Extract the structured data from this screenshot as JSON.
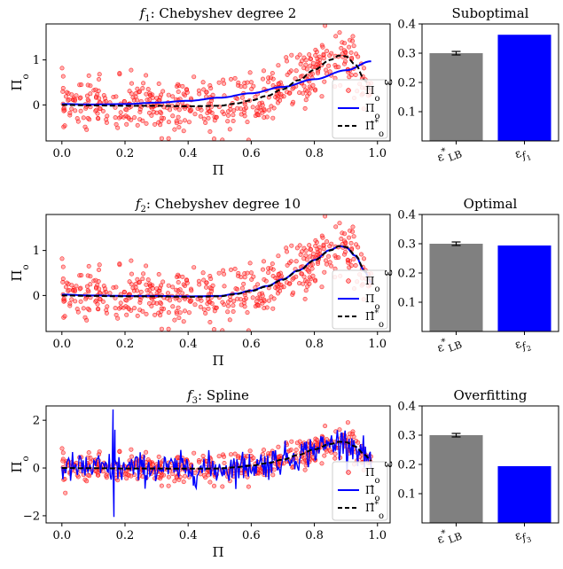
{
  "chart_data": [
    {
      "type": "scatter+line",
      "panel": "left",
      "title": "f₁: Chebyshev degree 2",
      "xlabel": "Π",
      "ylabel": "Π_o",
      "xlim": [
        -0.05,
        1.04
      ],
      "ylim": [
        -0.8,
        1.8
      ],
      "xticks": [
        0.0,
        0.2,
        0.4,
        0.6,
        0.8,
        1.0
      ],
      "xtick_labels": [
        "0.0",
        "0.2",
        "0.4",
        "0.6",
        "0.8",
        "1.0"
      ],
      "yticks": [
        0,
        1
      ],
      "ytick_labels": [
        "0",
        "1"
      ],
      "legend": [
        {
          "label": "Π_o",
          "style": "scatter",
          "color": "#ff0000"
        },
        {
          "label": "Π_o",
          "style": "line",
          "color": "#0000ff"
        },
        {
          "label": "Π̂*_o",
          "style": "dashed",
          "color": "#000000"
        }
      ],
      "series": [
        {
          "name": "fit",
          "color": "#0000ff",
          "x": [
            0.0,
            0.1,
            0.2,
            0.3,
            0.4,
            0.5,
            0.6,
            0.7,
            0.8,
            0.9,
            0.98
          ],
          "y": [
            0.02,
            0.01,
            0.02,
            0.05,
            0.09,
            0.16,
            0.26,
            0.4,
            0.57,
            0.77,
            0.97
          ]
        },
        {
          "name": "true",
          "color": "#000000",
          "dash": true,
          "x": [
            0.0,
            0.1,
            0.2,
            0.3,
            0.4,
            0.5,
            0.55,
            0.6,
            0.65,
            0.7,
            0.75,
            0.8,
            0.85,
            0.88,
            0.9,
            0.93,
            0.96,
            0.98
          ],
          "y": [
            0.0,
            -0.01,
            -0.02,
            -0.02,
            -0.03,
            -0.02,
            0.03,
            0.1,
            0.2,
            0.35,
            0.55,
            0.78,
            1.0,
            1.1,
            1.08,
            0.9,
            0.55,
            0.3
          ]
        }
      ]
    },
    {
      "type": "bar",
      "panel": "right",
      "title": "Suboptimal",
      "ylabel": "ε",
      "ylim": [
        0.0,
        0.4
      ],
      "yticks": [
        0.1,
        0.2,
        0.3,
        0.4
      ],
      "ytick_labels": [
        "0.1",
        "0.2",
        "0.3",
        "0.4"
      ],
      "categories": [
        "ε*_LB",
        "ε_f₁"
      ],
      "values": [
        0.3,
        0.363
      ],
      "errors": [
        0.006,
        null
      ],
      "colors": [
        "#808080",
        "#0000ff"
      ]
    },
    {
      "type": "scatter+line",
      "panel": "left",
      "title": "f₂: Chebyshev degree 10",
      "xlabel": "Π",
      "ylabel": "Π_o",
      "xlim": [
        -0.05,
        1.04
      ],
      "ylim": [
        -0.8,
        1.8
      ],
      "xticks": [
        0.0,
        0.2,
        0.4,
        0.6,
        0.8,
        1.0
      ],
      "xtick_labels": [
        "0.0",
        "0.2",
        "0.4",
        "0.6",
        "0.8",
        "1.0"
      ],
      "yticks": [
        0,
        1
      ],
      "ytick_labels": [
        "0",
        "1"
      ],
      "legend": [
        {
          "label": "Π_o",
          "style": "scatter",
          "color": "#ff0000"
        },
        {
          "label": "Π_o",
          "style": "line",
          "color": "#0000ff"
        },
        {
          "label": "Π̂*_o",
          "style": "dashed",
          "color": "#000000"
        }
      ],
      "series": [
        {
          "name": "fit",
          "color": "#0000ff",
          "x": [
            0.0,
            0.1,
            0.2,
            0.3,
            0.4,
            0.5,
            0.55,
            0.6,
            0.65,
            0.7,
            0.75,
            0.8,
            0.85,
            0.88,
            0.9,
            0.93,
            0.96,
            0.98
          ],
          "y": [
            0.02,
            0.0,
            -0.01,
            -0.01,
            -0.02,
            -0.01,
            0.04,
            0.11,
            0.21,
            0.36,
            0.56,
            0.79,
            1.01,
            1.1,
            1.07,
            0.88,
            0.53,
            0.28
          ]
        },
        {
          "name": "true",
          "color": "#000000",
          "dash": true,
          "x": [
            0.0,
            0.1,
            0.2,
            0.3,
            0.4,
            0.5,
            0.55,
            0.6,
            0.65,
            0.7,
            0.75,
            0.8,
            0.85,
            0.88,
            0.9,
            0.93,
            0.96,
            0.98
          ],
          "y": [
            0.0,
            -0.01,
            -0.02,
            -0.02,
            -0.03,
            -0.02,
            0.03,
            0.1,
            0.2,
            0.35,
            0.55,
            0.78,
            1.0,
            1.1,
            1.08,
            0.9,
            0.55,
            0.3
          ]
        }
      ]
    },
    {
      "type": "bar",
      "panel": "right",
      "title": "Optimal",
      "ylabel": "ε",
      "ylim": [
        0.0,
        0.4
      ],
      "yticks": [
        0.1,
        0.2,
        0.3,
        0.4
      ],
      "ytick_labels": [
        "0.1",
        "0.2",
        "0.3",
        "0.4"
      ],
      "categories": [
        "ε*_LB",
        "ε_f₂"
      ],
      "values": [
        0.3,
        0.294
      ],
      "errors": [
        0.006,
        null
      ],
      "colors": [
        "#808080",
        "#0000ff"
      ]
    },
    {
      "type": "scatter+line",
      "panel": "left",
      "title": "f₃: Spline",
      "xlabel": "Π",
      "ylabel": "Π_o",
      "xlim": [
        -0.05,
        1.04
      ],
      "ylim": [
        -2.3,
        2.6
      ],
      "xticks": [
        0.0,
        0.2,
        0.4,
        0.6,
        0.8,
        1.0
      ],
      "xtick_labels": [
        "0.0",
        "0.2",
        "0.4",
        "0.6",
        "0.8",
        "1.0"
      ],
      "yticks": [
        -2,
        0,
        2
      ],
      "ytick_labels": [
        "−2",
        "0",
        "2"
      ],
      "legend": [
        {
          "label": "Π_o",
          "style": "scatter",
          "color": "#ff0000"
        },
        {
          "label": "Π̂_o",
          "style": "line",
          "color": "#0000ff"
        },
        {
          "label": "Π̂*_o",
          "style": "dashed",
          "color": "#000000"
        }
      ],
      "series": [
        {
          "name": "fit",
          "color": "#0000ff",
          "noisy": true,
          "x": [
            0.0,
            0.1,
            0.2,
            0.3,
            0.4,
            0.5,
            0.55,
            0.6,
            0.65,
            0.7,
            0.75,
            0.8,
            0.85,
            0.88,
            0.9,
            0.93,
            0.96,
            0.98
          ],
          "y": [
            0.0,
            -0.01,
            -0.02,
            -0.02,
            -0.03,
            -0.02,
            0.03,
            0.1,
            0.2,
            0.35,
            0.55,
            0.78,
            1.0,
            1.1,
            1.08,
            0.9,
            0.55,
            0.3
          ],
          "spikes": [
            [
              0.162,
              2.45
            ],
            [
              0.165,
              -2.05
            ],
            [
              0.168,
              1.6
            ]
          ]
        },
        {
          "name": "true",
          "color": "#000000",
          "dash": true,
          "x": [
            0.0,
            0.1,
            0.2,
            0.3,
            0.4,
            0.5,
            0.55,
            0.6,
            0.65,
            0.7,
            0.75,
            0.8,
            0.85,
            0.88,
            0.9,
            0.93,
            0.96,
            0.98
          ],
          "y": [
            0.0,
            -0.01,
            -0.02,
            -0.02,
            -0.03,
            -0.02,
            0.03,
            0.1,
            0.2,
            0.35,
            0.55,
            0.78,
            1.0,
            1.1,
            1.08,
            0.9,
            0.55,
            0.3
          ]
        }
      ]
    },
    {
      "type": "bar",
      "panel": "right",
      "title": "Overfitting",
      "ylabel": "ε",
      "ylim": [
        0.0,
        0.4
      ],
      "yticks": [
        0.1,
        0.2,
        0.3,
        0.4
      ],
      "ytick_labels": [
        "0.1",
        "0.2",
        "0.3",
        "0.4"
      ],
      "categories": [
        "ε*_LB",
        "ε_f₃"
      ],
      "values": [
        0.3,
        0.194
      ],
      "errors": [
        0.006,
        null
      ],
      "colors": [
        "#808080",
        "#0000ff"
      ]
    }
  ],
  "scatter_style": {
    "color": "#ff0000",
    "count": 500,
    "noise_sd": 0.3
  }
}
